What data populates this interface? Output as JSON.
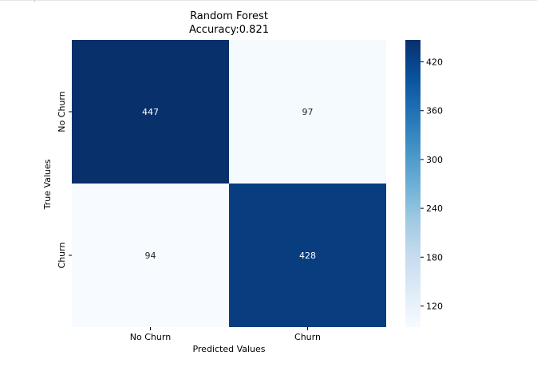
{
  "chart_data": {
    "type": "heatmap",
    "title": "Random Forest",
    "subtitle": "Accuracy:0.821",
    "xlabel": "Predicted Values",
    "ylabel": "True Values",
    "x_categories": [
      "No Churn",
      "Churn"
    ],
    "y_categories": [
      "No Churn",
      "Churn"
    ],
    "values": [
      [
        447,
        97
      ],
      [
        94,
        428
      ]
    ],
    "colormap": "Blues",
    "colorbar": {
      "range": [
        94,
        447
      ],
      "ticks": [
        120,
        180,
        240,
        300,
        360,
        420
      ]
    },
    "grid": false
  }
}
